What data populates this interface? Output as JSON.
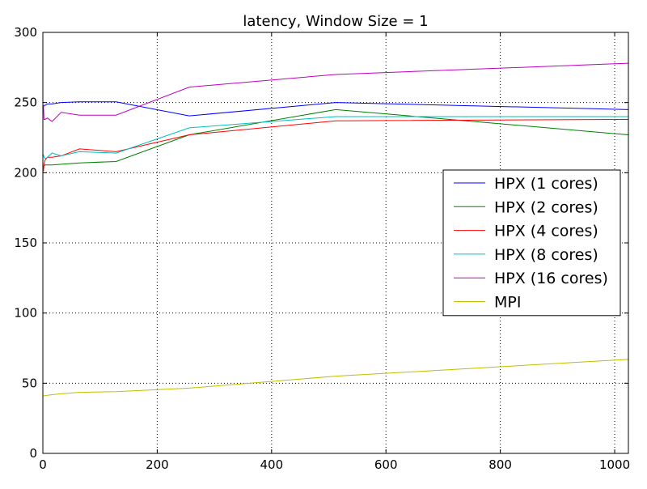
{
  "chart_data": {
    "type": "line",
    "title": "latency, Window Size = 1",
    "xlabel": "",
    "ylabel": "",
    "xlim": [
      0,
      1024
    ],
    "ylim": [
      0,
      300
    ],
    "xticks": [
      0,
      200,
      400,
      600,
      800,
      1000
    ],
    "yticks": [
      0,
      50,
      100,
      150,
      200,
      250,
      300
    ],
    "grid": true,
    "legend_position": "center-right",
    "series": [
      {
        "name": "HPX (1 cores)",
        "color": "#0000ff",
        "x": [
          1,
          2,
          4,
          8,
          16,
          32,
          64,
          128,
          256,
          512,
          1024
        ],
        "y": [
          247,
          248,
          248,
          249,
          249,
          250,
          250.5,
          250.5,
          240.5,
          250,
          245
        ]
      },
      {
        "name": "HPX (2 cores)",
        "color": "#008000",
        "x": [
          1,
          2,
          4,
          8,
          16,
          32,
          64,
          128,
          256,
          512,
          1024
        ],
        "y": [
          204,
          205,
          205.5,
          205.5,
          205.5,
          206,
          207,
          208,
          227,
          245,
          227
        ]
      },
      {
        "name": "HPX (4 cores)",
        "color": "#ff0000",
        "x": [
          1,
          2,
          4,
          8,
          16,
          32,
          64,
          128,
          256,
          512,
          1024
        ],
        "y": [
          201,
          206,
          209,
          211,
          211,
          212,
          217,
          215,
          227,
          237,
          238
        ]
      },
      {
        "name": "HPX (8 cores)",
        "color": "#00bfbf",
        "x": [
          1,
          2,
          4,
          8,
          16,
          32,
          64,
          128,
          256,
          512,
          1024
        ],
        "y": [
          213,
          211,
          210,
          211,
          214,
          212,
          215,
          214,
          232,
          240,
          240
        ]
      },
      {
        "name": "HPX (16 cores)",
        "color": "#bf00bf",
        "x": [
          1,
          2,
          4,
          8,
          16,
          32,
          64,
          128,
          256,
          512,
          1024
        ],
        "y": [
          248,
          238,
          238,
          239,
          236.5,
          243,
          241,
          241,
          261,
          270,
          278
        ]
      },
      {
        "name": "MPI",
        "color": "#bfbf00",
        "x": [
          1,
          2,
          4,
          8,
          16,
          32,
          64,
          128,
          256,
          512,
          1024
        ],
        "y": [
          41,
          41,
          41.2,
          41.4,
          41.8,
          42.5,
          43.5,
          44,
          46.5,
          55,
          67
        ]
      }
    ]
  }
}
